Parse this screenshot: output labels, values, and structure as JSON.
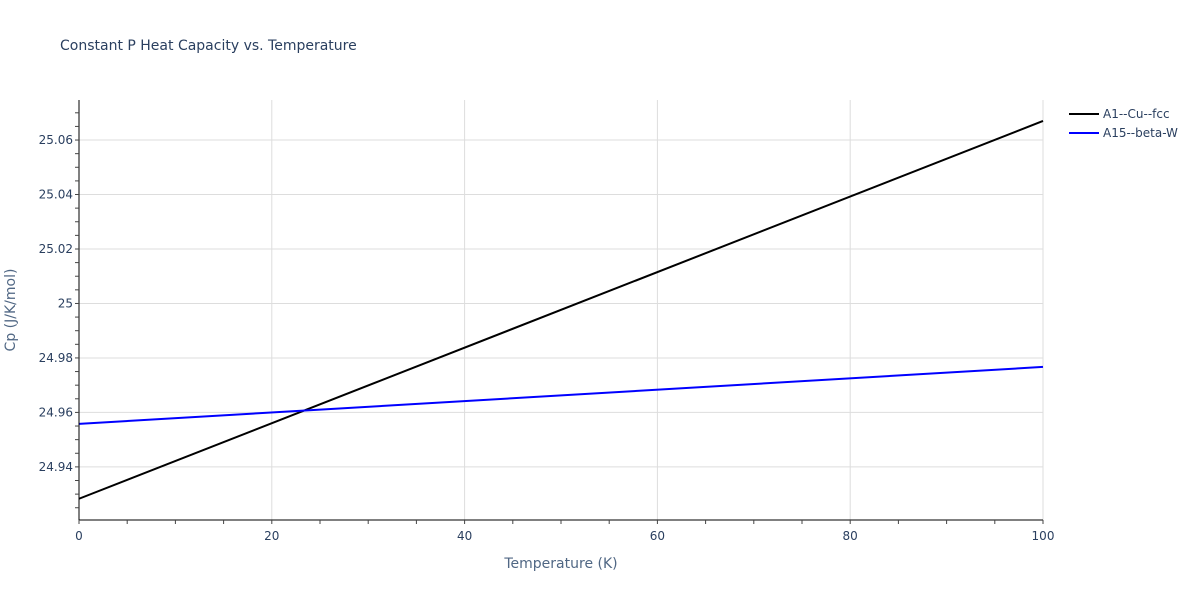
{
  "chart_data": {
    "type": "line",
    "title": "Constant P Heat Capacity vs. Temperature",
    "xlabel": "Temperature (K)",
    "ylabel": "Cp (J/K/mol)",
    "xlim": [
      0,
      100
    ],
    "ylim": [
      24.9205,
      25.0747
    ],
    "x_ticks": [
      0,
      20,
      40,
      60,
      80,
      100
    ],
    "x_tick_labels": [
      "0",
      "20",
      "40",
      "60",
      "80",
      "100"
    ],
    "y_ticks": [
      24.94,
      24.96,
      24.98,
      25.0,
      25.02,
      25.04,
      25.06
    ],
    "y_tick_labels": [
      "24.94",
      "24.96",
      "24.98",
      "25",
      "25.02",
      "25.04",
      "25.06"
    ],
    "grid": true,
    "legend_position": "top-right-outside",
    "series": [
      {
        "name": "A1--Cu--fcc",
        "color": "#000000",
        "x": [
          0,
          100
        ],
        "values": [
          24.9283,
          25.067
        ]
      },
      {
        "name": "A15--beta-W",
        "color": "#0000ff",
        "x": [
          0,
          100
        ],
        "values": [
          24.9558,
          24.9767
        ]
      }
    ]
  },
  "colors": {
    "text": "#2a3f5f",
    "grid": "#dddddd",
    "axis": "#000000"
  }
}
